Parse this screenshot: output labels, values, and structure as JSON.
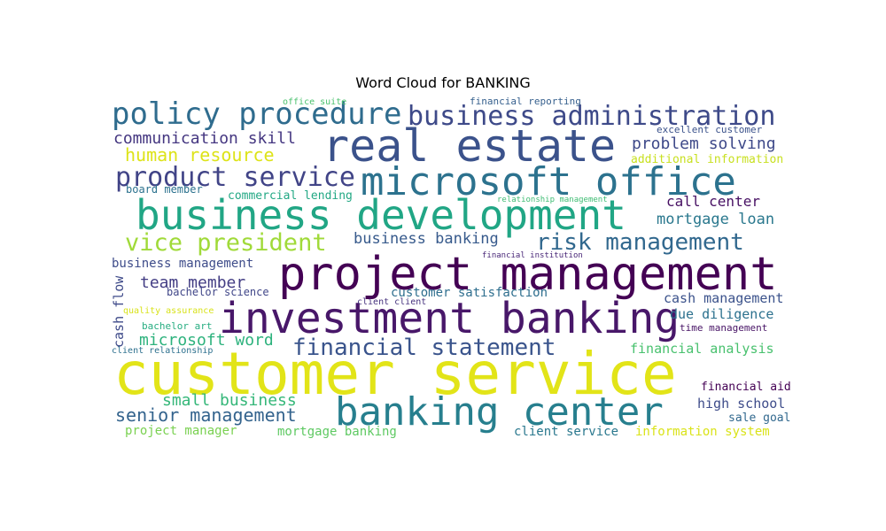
{
  "chart_data": {
    "type": "wordcloud",
    "title": "Word Cloud for BANKING",
    "words": [
      {
        "text": "customer service",
        "color": "#e2e418"
      },
      {
        "text": "project management",
        "color": "#440154"
      },
      {
        "text": "investment banking",
        "color": "#481769"
      },
      {
        "text": "business development",
        "color": "#21a685"
      },
      {
        "text": "real estate",
        "color": "#3b528b"
      },
      {
        "text": "microsoft office",
        "color": "#2c728e"
      },
      {
        "text": "banking center",
        "color": "#277f8e"
      },
      {
        "text": "policy procedure",
        "color": "#2f6c8e"
      },
      {
        "text": "business administration",
        "color": "#3e4a89"
      },
      {
        "text": "product service",
        "color": "#414487"
      },
      {
        "text": "vice president",
        "color": "#a0da39"
      },
      {
        "text": "risk management",
        "color": "#31688e"
      },
      {
        "text": "financial statement",
        "color": "#3a548c"
      },
      {
        "text": "communication skill",
        "color": "#453781"
      },
      {
        "text": "human resource",
        "color": "#dde318"
      },
      {
        "text": "problem solving",
        "color": "#3e4989"
      },
      {
        "text": "mortgage loan",
        "color": "#2a788e"
      },
      {
        "text": "call center",
        "color": "#471063"
      },
      {
        "text": "senior management",
        "color": "#33638d"
      },
      {
        "text": "small business",
        "color": "#35b779"
      },
      {
        "text": "business banking",
        "color": "#375a8c"
      },
      {
        "text": "microsoft word",
        "color": "#2db27d"
      },
      {
        "text": "team member",
        "color": "#433d84"
      },
      {
        "text": "high school",
        "color": "#3e4c8a"
      },
      {
        "text": "cash management",
        "color": "#3b528b"
      },
      {
        "text": "due diligence",
        "color": "#2c718e"
      },
      {
        "text": "financial analysis",
        "color": "#48c16e"
      },
      {
        "text": "customer satisfaction",
        "color": "#2e6e8e"
      },
      {
        "text": "business management",
        "color": "#3e4c8a"
      },
      {
        "text": "client service",
        "color": "#2a788e"
      },
      {
        "text": "information system",
        "color": "#dae319"
      },
      {
        "text": "project manager",
        "color": "#7ad151"
      },
      {
        "text": "mortgage banking",
        "color": "#5ec962"
      },
      {
        "text": "financial aid",
        "color": "#440154"
      },
      {
        "text": "sale goal",
        "color": "#31688e"
      },
      {
        "text": "additional information",
        "color": "#c8e020"
      },
      {
        "text": "cash flow",
        "color": "#3e4a89"
      },
      {
        "text": "commercial lending",
        "color": "#22a884"
      },
      {
        "text": "bachelor science",
        "color": "#404688"
      },
      {
        "text": "board member",
        "color": "#2c728e"
      },
      {
        "text": "time management",
        "color": "#471365"
      },
      {
        "text": "excellent customer",
        "color": "#3b528b"
      },
      {
        "text": "bachelor art",
        "color": "#27ad81"
      },
      {
        "text": "quality assurance",
        "color": "#d8e219"
      },
      {
        "text": "client client",
        "color": "#46327e"
      },
      {
        "text": "client relationship",
        "color": "#2d708e"
      },
      {
        "text": "financial reporting",
        "color": "#355f8d"
      },
      {
        "text": "office suite",
        "color": "#4ac16d"
      },
      {
        "text": "relationship management",
        "color": "#3fbc73"
      },
      {
        "text": "financial institution",
        "color": "#482677"
      }
    ]
  }
}
